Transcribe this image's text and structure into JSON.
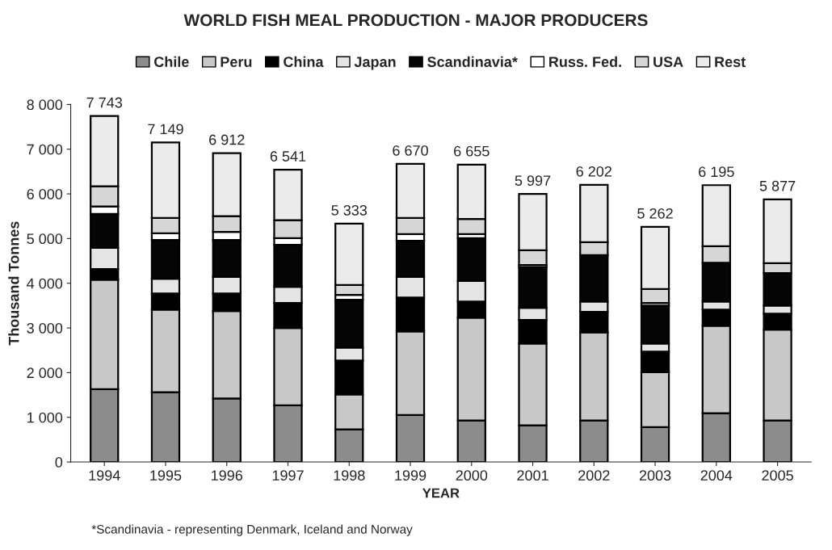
{
  "chart_data": {
    "type": "bar",
    "title": "WORLD FISH MEAL PRODUCTION - MAJOR PRODUCERS",
    "xlabel": "YEAR",
    "ylabel": "Thousand Tonnes",
    "categories": [
      "1994",
      "1995",
      "1996",
      "1997",
      "1998",
      "1999",
      "2000",
      "2001",
      "2002",
      "2003",
      "2004",
      "2005"
    ],
    "stacked": true,
    "series": [
      {
        "name": "Chile",
        "color": "#8c8c8c",
        "values": [
          1630,
          1560,
          1420,
          1270,
          730,
          1050,
          930,
          820,
          930,
          780,
          1090,
          930
        ]
      },
      {
        "name": "Peru",
        "color": "#c8c8c8",
        "values": [
          2450,
          1850,
          1960,
          1730,
          780,
          1870,
          2300,
          1830,
          1970,
          1230,
          1960,
          2030
        ]
      },
      {
        "name": "China",
        "color": "#000000",
        "values": [
          240,
          360,
          390,
          560,
          760,
          760,
          360,
          530,
          460,
          460,
          360,
          360
        ]
      },
      {
        "name": "Japan",
        "color": "#e4e4e4",
        "values": [
          470,
          330,
          370,
          360,
          290,
          460,
          460,
          270,
          230,
          180,
          180,
          180
        ]
      },
      {
        "name": "Scandinavia*",
        "color": "#050505",
        "values": [
          760,
          870,
          830,
          940,
          1070,
          810,
          960,
          910,
          1040,
          850,
          870,
          730
        ]
      },
      {
        "name": "Russ. Fed.",
        "color": "#ffffff",
        "values": [
          170,
          150,
          180,
          150,
          110,
          150,
          90,
          50,
          0,
          60,
          0,
          0
        ]
      },
      {
        "name": "USA",
        "color": "#d6d6d6",
        "values": [
          450,
          340,
          350,
          400,
          220,
          360,
          340,
          330,
          290,
          310,
          370,
          220
        ]
      },
      {
        "name": "Rest",
        "color": "#ebebeb",
        "values": [
          1573,
          1689,
          1412,
          1131,
          1373,
          1210,
          1215,
          1257,
          1282,
          1392,
          1365,
          1427
        ]
      }
    ],
    "totals": [
      "7 743",
      "7 149",
      "6 912",
      "6 541",
      "5 333",
      "6 670",
      "6 655",
      "5 997",
      "6 202",
      "5 262",
      "6 195",
      "5 877"
    ],
    "ylim": [
      0,
      8000
    ],
    "yticks": [
      0,
      {
        "value": 1000,
        "label": "1 000"
      },
      {
        "value": 2000,
        "label": "2 000"
      },
      {
        "value": 3000,
        "label": "3 000"
      },
      {
        "value": 4000,
        "label": "4 000"
      },
      {
        "value": 5000,
        "label": "5 000"
      },
      {
        "value": 6000,
        "label": "6 000"
      },
      {
        "value": 7000,
        "label": "7 000"
      },
      {
        "value": 8000,
        "label": "8 000"
      }
    ],
    "legend": "top",
    "annotations": [
      "*Scandinavia - representing Denmark, Iceland and Norway"
    ]
  }
}
